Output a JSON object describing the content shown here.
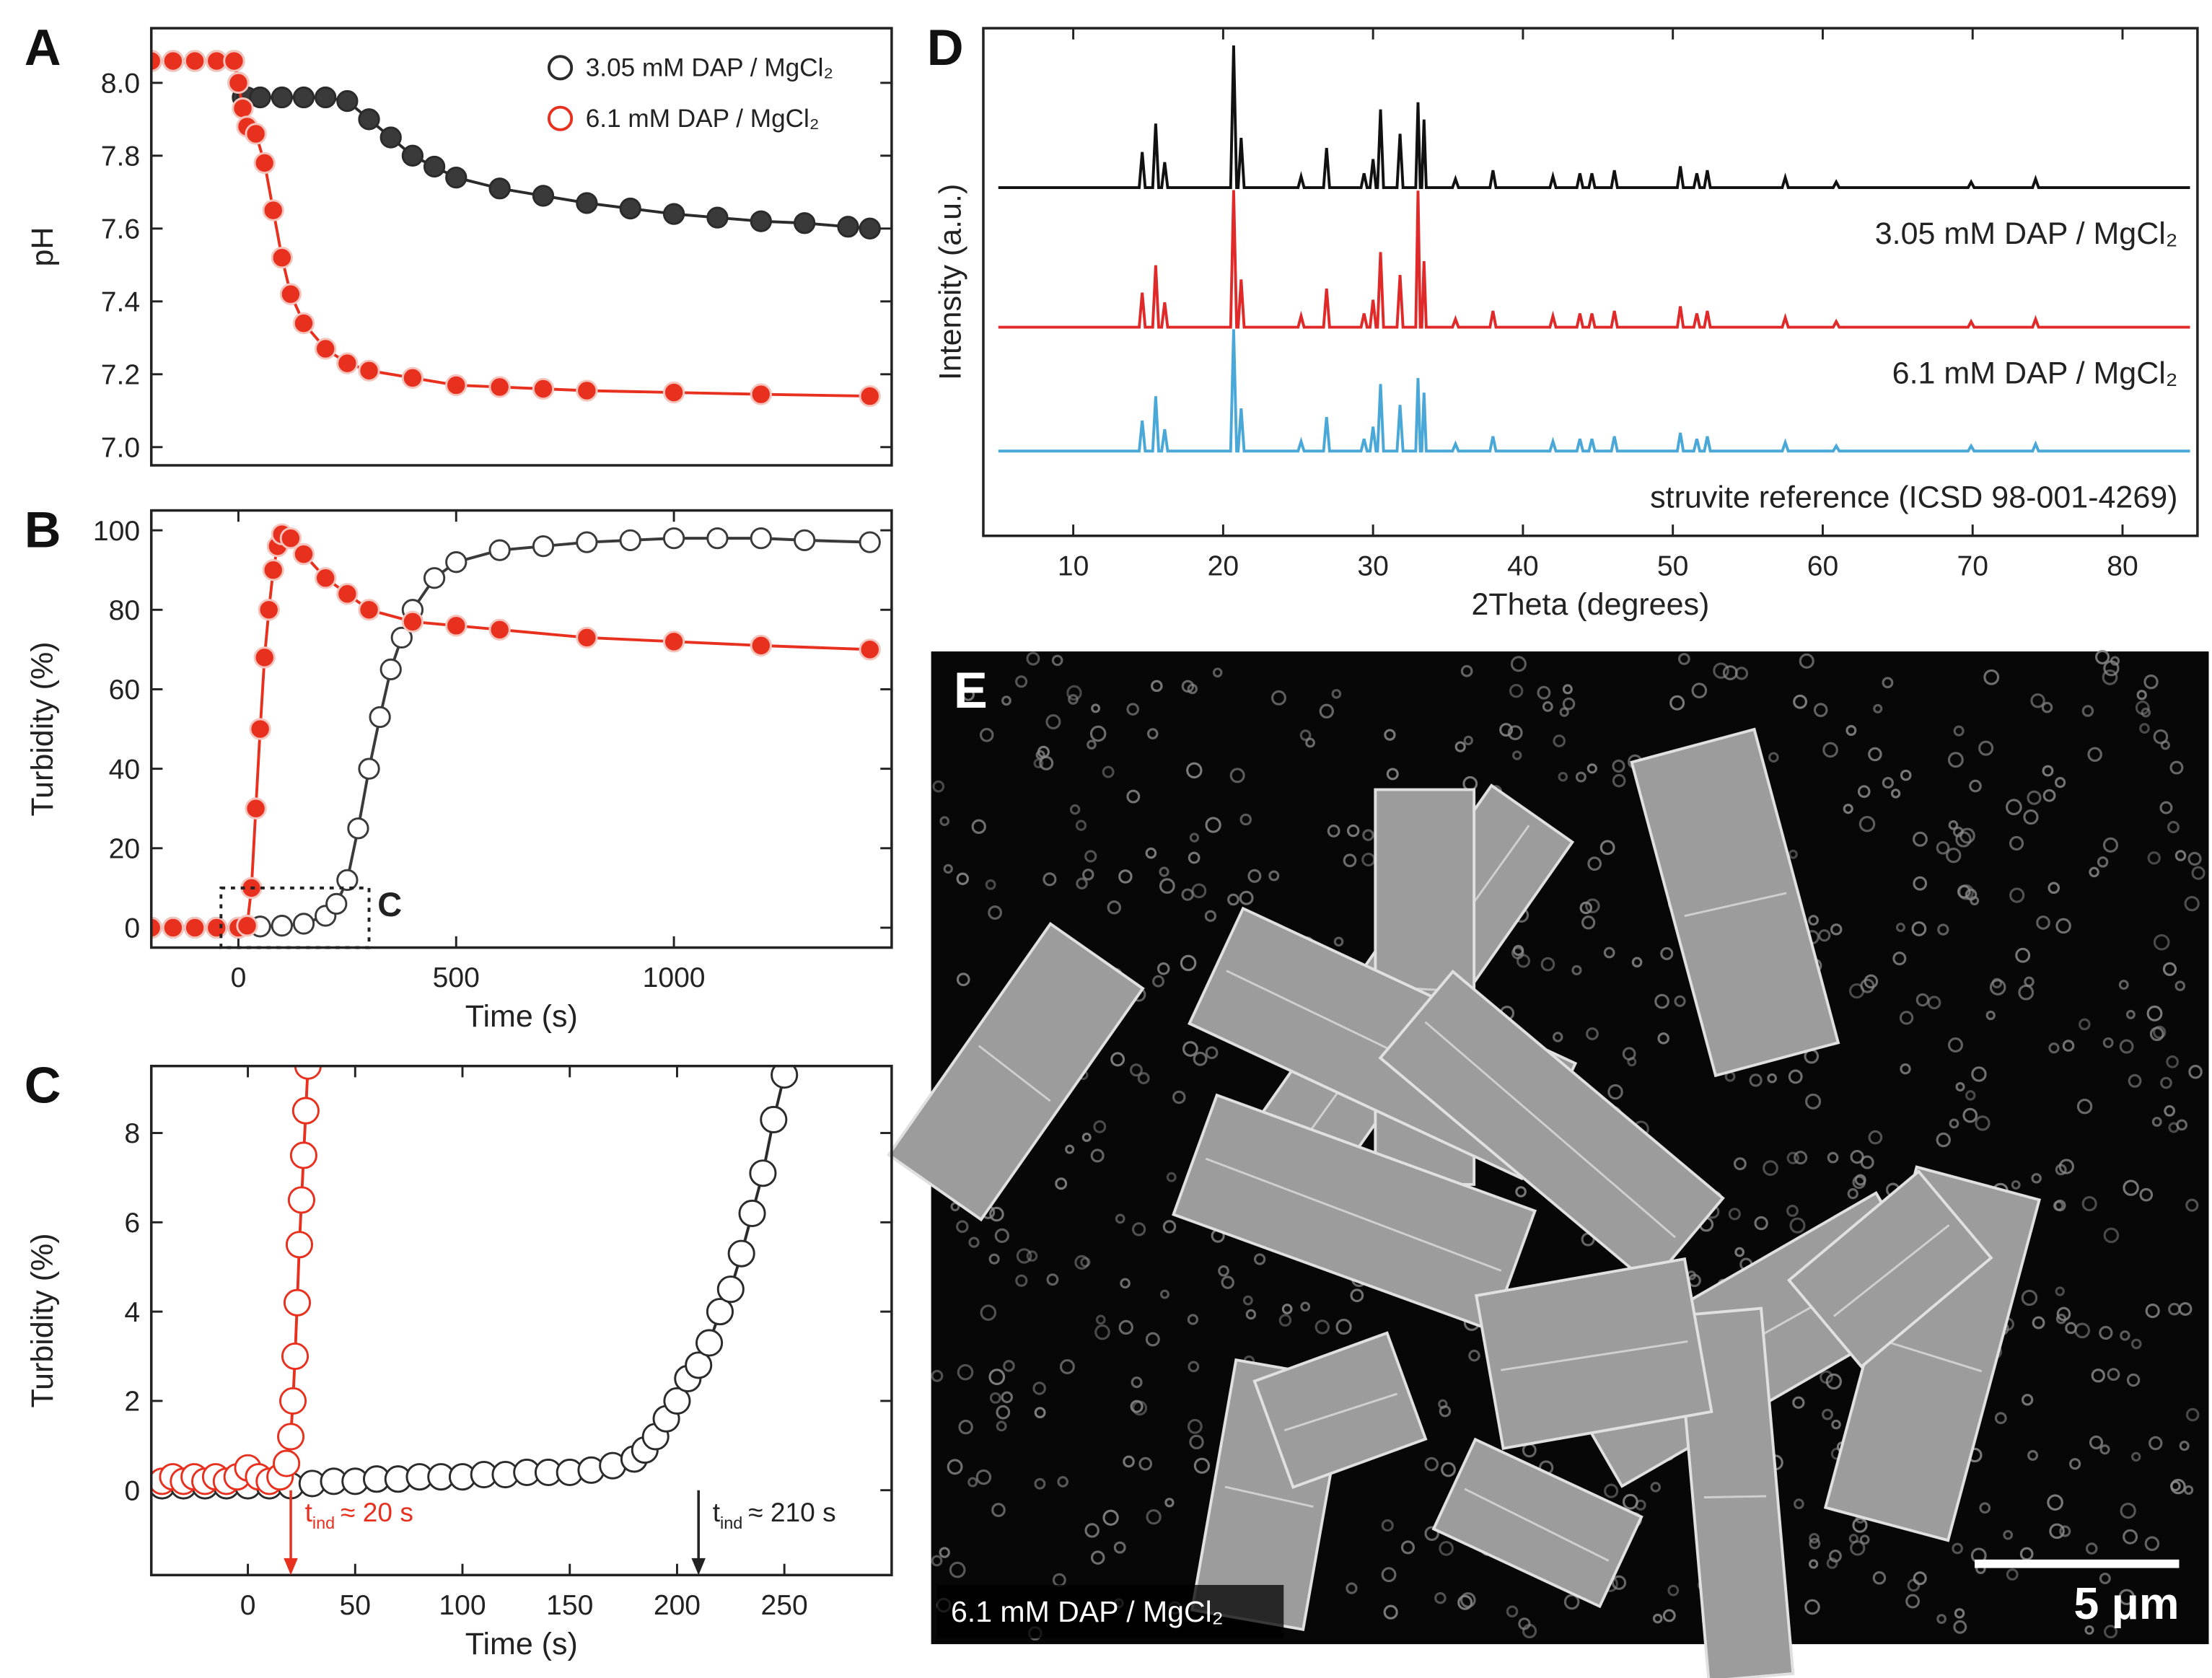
{
  "chart_data": [
    {
      "type": "scatter",
      "panel_label": "A",
      "y_label": "pH",
      "legend": "upper right",
      "xlim": [
        -200,
        1500
      ],
      "ylim": [
        6.95,
        8.15
      ],
      "yticks": [
        {
          "value": 7,
          "label": "7.0"
        },
        7.2,
        7.4,
        7.6,
        7.8,
        {
          "value": 8,
          "label": "8.0"
        }
      ],
      "series": [
        {
          "name": "3.05 mM DAP / MgCl₂",
          "color": "#2b2b2b",
          "marker_fill": "#3a3a3a",
          "x": [
            -200,
            -150,
            -100,
            -50,
            -10,
            0,
            10,
            20,
            50,
            100,
            150,
            200,
            250,
            300,
            350,
            400,
            450,
            500,
            600,
            700,
            800,
            900,
            1000,
            1100,
            1200,
            1300,
            1400,
            1450
          ],
          "values": [
            8.06,
            8.06,
            8.06,
            8.06,
            8.06,
            8.0,
            7.96,
            7.96,
            7.96,
            7.96,
            7.96,
            7.96,
            7.95,
            7.9,
            7.85,
            7.8,
            7.77,
            7.74,
            7.71,
            7.69,
            7.67,
            7.655,
            7.64,
            7.63,
            7.62,
            7.615,
            7.605,
            7.6
          ]
        },
        {
          "name": "6.1 mM DAP / MgCl₂",
          "color": "#e8301f",
          "marker_fill": "#e8301f",
          "x": [
            -200,
            -150,
            -100,
            -50,
            -10,
            0,
            10,
            20,
            40,
            60,
            80,
            100,
            120,
            150,
            200,
            250,
            300,
            400,
            500,
            600,
            700,
            800,
            1000,
            1200,
            1450
          ],
          "values": [
            8.06,
            8.06,
            8.06,
            8.06,
            8.06,
            8.0,
            7.93,
            7.88,
            7.86,
            7.78,
            7.65,
            7.52,
            7.42,
            7.34,
            7.27,
            7.23,
            7.21,
            7.19,
            7.17,
            7.165,
            7.16,
            7.155,
            7.15,
            7.145,
            7.14
          ]
        }
      ]
    },
    {
      "type": "scatter",
      "panel_label": "B",
      "x_label": "Time (s)",
      "y_label": "Turbidity (%)",
      "xlim": [
        -200,
        1500
      ],
      "ylim": [
        -5,
        105
      ],
      "xticks": [
        0,
        500,
        1000
      ],
      "yticks": [
        0,
        20,
        40,
        60,
        80,
        100
      ],
      "zoom_box": {
        "label": "C",
        "xlim": [
          -40,
          300
        ],
        "ylim": [
          -5,
          10
        ]
      },
      "series": [
        {
          "color": "#3a3a3a",
          "marker_fill": "#ffffff",
          "x": [
            -200,
            -150,
            -100,
            -50,
            0,
            50,
            100,
            150,
            200,
            225,
            250,
            275,
            300,
            325,
            350,
            375,
            400,
            450,
            500,
            600,
            700,
            800,
            900,
            1000,
            1100,
            1200,
            1300,
            1450
          ],
          "values": [
            0,
            0,
            0,
            0,
            0,
            0.3,
            0.5,
            1,
            3,
            6,
            12,
            25,
            40,
            53,
            65,
            73,
            80,
            88,
            92,
            95,
            96,
            97,
            97.5,
            98,
            98,
            98,
            97.5,
            97
          ]
        },
        {
          "color": "#e8301f",
          "marker_fill": "#e8301f",
          "x": [
            -200,
            -150,
            -100,
            -50,
            0,
            20,
            30,
            40,
            50,
            60,
            70,
            80,
            90,
            100,
            120,
            150,
            200,
            250,
            300,
            400,
            500,
            600,
            800,
            1000,
            1200,
            1450
          ],
          "values": [
            0,
            0,
            0,
            0,
            0,
            0.5,
            10,
            30,
            50,
            68,
            80,
            90,
            96,
            99,
            98,
            94,
            88,
            84,
            80,
            77,
            76,
            75,
            73,
            72,
            71,
            70
          ]
        }
      ]
    },
    {
      "type": "scatter",
      "panel_label": "C",
      "x_label": "Time (s)",
      "y_label": "Turbidity (%)",
      "xlim": [
        -45,
        300
      ],
      "ylim": [
        -1.9,
        9.5
      ],
      "xticks": [
        0,
        50,
        100,
        150,
        200,
        250
      ],
      "yticks": [
        0,
        2,
        4,
        6,
        8
      ],
      "annotations": [
        {
          "x": 20,
          "label": "t",
          "subscript": "ind",
          "text": "≈ 20 s",
          "color": "#e8301f"
        },
        {
          "x": 210,
          "label": "t",
          "subscript": "ind",
          "text": "≈ 210 s",
          "color": "#222222"
        }
      ],
      "series": [
        {
          "color": "#2b2b2b",
          "marker_fill": "#ffffff",
          "x": [
            -40,
            -30,
            -20,
            -10,
            0,
            10,
            20,
            30,
            40,
            50,
            60,
            70,
            80,
            90,
            100,
            110,
            120,
            130,
            140,
            150,
            160,
            170,
            180,
            185,
            190,
            195,
            200,
            205,
            210,
            215,
            220,
            225,
            230,
            235,
            240,
            245,
            250
          ],
          "values": [
            0.1,
            0.1,
            0.1,
            0.1,
            0.1,
            0.1,
            0.1,
            0.15,
            0.2,
            0.2,
            0.25,
            0.25,
            0.3,
            0.3,
            0.3,
            0.35,
            0.35,
            0.4,
            0.4,
            0.4,
            0.45,
            0.55,
            0.7,
            0.9,
            1.2,
            1.6,
            2.0,
            2.5,
            2.8,
            3.3,
            4.0,
            4.5,
            5.3,
            6.2,
            7.1,
            8.3,
            9.3
          ]
        },
        {
          "color": "#e8301f",
          "marker_fill": "#ffffff",
          "x": [
            -40,
            -35,
            -30,
            -25,
            -20,
            -15,
            -10,
            -5,
            0,
            5,
            10,
            15,
            18,
            20,
            21,
            22,
            23,
            24,
            25,
            26,
            27,
            28
          ],
          "values": [
            0.2,
            0.3,
            0.2,
            0.3,
            0.2,
            0.3,
            0.2,
            0.3,
            0.5,
            0.3,
            0.2,
            0.3,
            0.6,
            1.2,
            2.0,
            3.0,
            4.2,
            5.5,
            6.5,
            7.5,
            8.5,
            9.5
          ]
        }
      ]
    },
    {
      "type": "line",
      "panel_label": "D",
      "x_label": "2Theta (degrees)",
      "y_label": "Intensity (a.u.)",
      "xlim": [
        4,
        85
      ],
      "ylim": [
        0,
        100
      ],
      "xticks": [
        10,
        20,
        30,
        40,
        50,
        60,
        70,
        80
      ],
      "x": [
        5,
        14.4,
        14.6,
        14.8,
        15.3,
        15.5,
        15.7,
        15.9,
        16.1,
        16.3,
        20.5,
        20.7,
        20.9,
        21.0,
        21.2,
        21.4,
        25.0,
        25.2,
        25.4,
        26.7,
        26.9,
        27.1,
        29.2,
        29.4,
        29.6,
        29.8,
        30.0,
        30.2,
        30.3,
        30.5,
        30.7,
        31.6,
        31.8,
        32.0,
        32.85,
        33.0,
        33.15,
        33.25,
        33.4,
        33.55,
        35.3,
        35.5,
        35.7,
        37.8,
        38.0,
        38.2,
        41.8,
        42.0,
        42.2,
        43.6,
        43.8,
        44.0,
        44.4,
        44.6,
        44.8,
        45.9,
        46.1,
        46.3,
        50.3,
        50.5,
        50.7,
        51.4,
        51.6,
        51.8,
        52.1,
        52.3,
        52.5,
        57.3,
        57.5,
        57.7,
        60.7,
        60.9,
        61.1,
        69.7,
        69.9,
        70.1,
        74.0,
        74.2,
        74.4,
        84.5
      ],
      "series": [
        {
          "name": "3.05 mM DAP / MgCl₂",
          "color": "#111111",
          "values": [
            68.6,
            68.6,
            75.6,
            68.6,
            68.6,
            81.2,
            68.6,
            68.6,
            73.6,
            68.6,
            68.6,
            96.6,
            68.6,
            68.6,
            78.4,
            68.6,
            68.6,
            70.8,
            68.6,
            68.6,
            76.4,
            68.6,
            68.6,
            71.4,
            68.6,
            68.6,
            74.2,
            68.6,
            68.6,
            84.0,
            68.6,
            68.6,
            79.2,
            68.6,
            68.6,
            85.4,
            68.6,
            68.6,
            82.0,
            68.6,
            68.6,
            70.3,
            68.6,
            68.6,
            72.0,
            68.6,
            68.6,
            70.8,
            68.6,
            68.6,
            71.4,
            68.6,
            68.6,
            71.4,
            68.6,
            68.6,
            72.0,
            68.6,
            68.6,
            72.8,
            68.6,
            68.6,
            71.4,
            68.6,
            68.6,
            72.0,
            68.6,
            68.6,
            70.6,
            68.6,
            68.6,
            69.7,
            68.6,
            68.6,
            69.7,
            68.6,
            68.6,
            70.3,
            68.6,
            68.6
          ]
        },
        {
          "name": "6.1 mM DAP / MgCl₂",
          "color": "#e02a2a",
          "values": [
            41.1,
            41.1,
            47.9,
            41.1,
            41.1,
            53.3,
            41.1,
            41.1,
            46.0,
            41.1,
            41.1,
            68.1,
            41.1,
            41.1,
            50.5,
            41.1,
            41.1,
            43.3,
            41.1,
            41.1,
            48.7,
            41.1,
            41.1,
            43.8,
            41.1,
            41.1,
            46.5,
            41.1,
            41.1,
            55.9,
            41.1,
            41.1,
            51.4,
            41.1,
            41.1,
            68.0,
            41.1,
            41.1,
            54.1,
            41.1,
            41.1,
            42.7,
            41.1,
            41.1,
            44.3,
            41.1,
            41.1,
            43.3,
            41.1,
            41.1,
            43.8,
            41.1,
            41.1,
            43.8,
            41.1,
            41.1,
            44.3,
            41.1,
            41.1,
            45.2,
            41.1,
            41.1,
            43.8,
            41.1,
            41.1,
            44.3,
            41.1,
            41.1,
            43.0,
            41.1,
            41.1,
            42.2,
            41.1,
            41.1,
            42.2,
            41.1,
            41.1,
            42.7,
            41.1,
            41.1
          ]
        },
        {
          "name": "struvite reference (ICSD 98-001-4269)",
          "color": "#4aa8d8",
          "values": [
            16.7,
            16.7,
            22.7,
            16.7,
            16.7,
            27.5,
            16.7,
            16.7,
            21.0,
            16.7,
            16.7,
            40.7,
            16.7,
            16.7,
            25.1,
            16.7,
            16.7,
            18.6,
            16.7,
            16.7,
            23.4,
            16.7,
            16.7,
            19.1,
            16.7,
            16.7,
            21.5,
            16.7,
            16.7,
            29.9,
            16.7,
            16.7,
            25.8,
            16.7,
            16.7,
            31.1,
            16.7,
            16.7,
            28.2,
            16.7,
            16.7,
            18.1,
            16.7,
            16.7,
            19.6,
            16.7,
            16.7,
            18.6,
            16.7,
            16.7,
            19.1,
            16.7,
            16.7,
            19.1,
            16.7,
            16.7,
            19.6,
            16.7,
            16.7,
            20.3,
            16.7,
            16.7,
            19.1,
            16.7,
            16.7,
            19.6,
            16.7,
            16.7,
            18.4,
            16.7,
            16.7,
            17.7,
            16.7,
            16.7,
            17.7,
            16.7,
            16.7,
            18.1,
            16.7,
            16.7
          ]
        }
      ]
    }
  ],
  "image": {
    "panel_label": "E",
    "caption": "6.1 mM DAP / MgCl₂",
    "scale_bar": "5 μm"
  }
}
